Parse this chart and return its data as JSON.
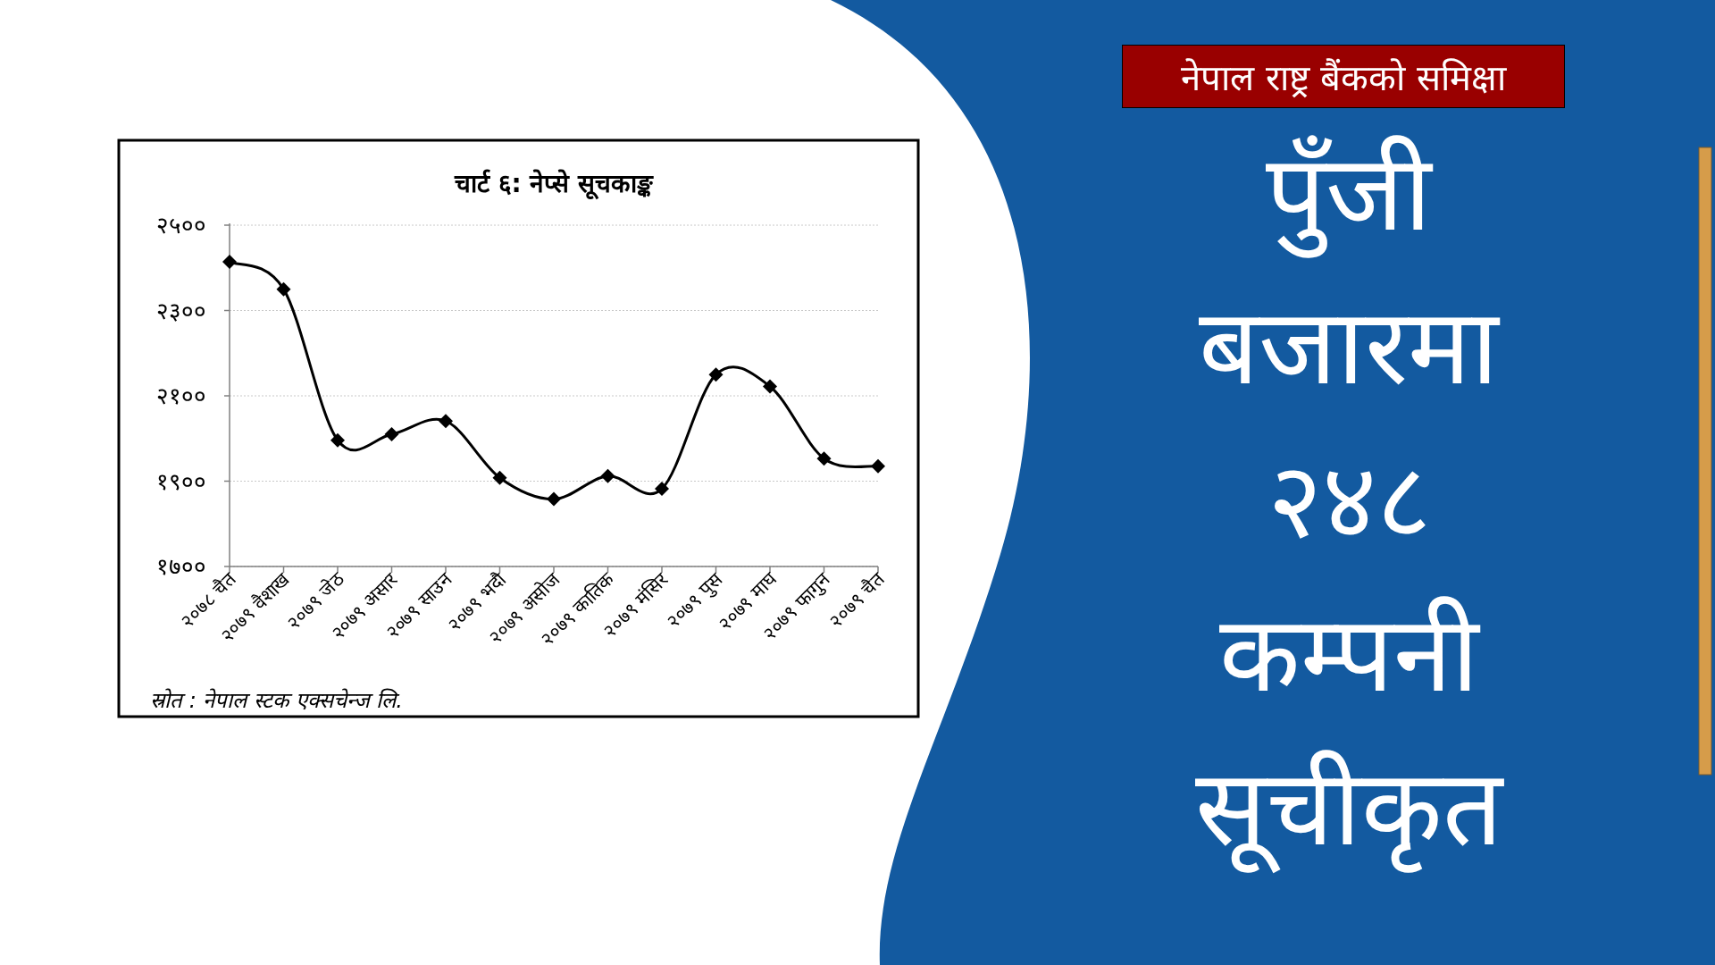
{
  "chart_data": {
    "type": "line",
    "title": "चार्ट ६: नेप्से सूचकाङ्क",
    "categories": [
      "२०७८ चैत",
      "२०७९ वैशाख",
      "२०७९ जेठ",
      "२०७९ असार",
      "२०७९ साउन",
      "२०७९ भदौ",
      "२०७९ असोज",
      "२०७९ कातिक",
      "२०७९ मंसिर",
      "२०७९ पुस",
      "२०७९ माघ",
      "२०७९ फागुन",
      "२०७९ चैत"
    ],
    "values": [
      2414,
      2350,
      1996,
      2010,
      2041,
      1908,
      1858,
      1912,
      1882,
      2150,
      2122,
      1953,
      1935
    ],
    "color": "#000000",
    "marker": "diamond",
    "line_style": "solid",
    "grid": "y",
    "ylim": [
      1700,
      2500
    ],
    "yticks": [
      {
        "value": 1700,
        "label": "१७००"
      },
      {
        "value": 1900,
        "label": "१९००"
      },
      {
        "value": 2100,
        "label": "२१००"
      },
      {
        "value": 2300,
        "label": "२३००"
      },
      {
        "value": 2500,
        "label": "२५००"
      }
    ],
    "annotations": [
      "स्रोत : नेपाल स्टक एक्सचेन्ज लि.",
      "नेपाल राष्ट्र बैंकको समिक्षा",
      "पुँजी बजारमा २४८ कम्पनी सूचीकृत"
    ]
  }
}
